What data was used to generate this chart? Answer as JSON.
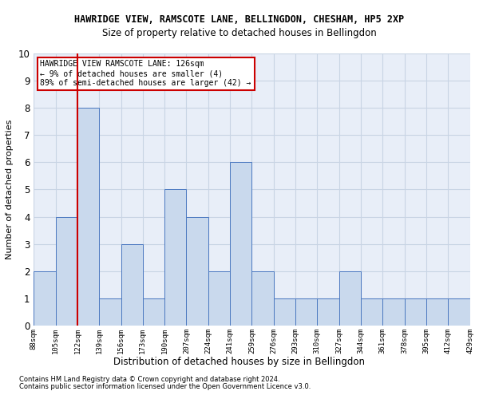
{
  "title": "HAWRIDGE VIEW, RAMSCOTE LANE, BELLINGDON, CHESHAM, HP5 2XP",
  "subtitle": "Size of property relative to detached houses in Bellingdon",
  "xlabel": "Distribution of detached houses by size in Bellingdon",
  "ylabel": "Number of detached properties",
  "categories": [
    "88sqm",
    "105sqm",
    "122sqm",
    "139sqm",
    "156sqm",
    "173sqm",
    "190sqm",
    "207sqm",
    "224sqm",
    "241sqm",
    "259sqm",
    "276sqm",
    "293sqm",
    "310sqm",
    "327sqm",
    "344sqm",
    "361sqm",
    "378sqm",
    "395sqm",
    "412sqm",
    "429sqm"
  ],
  "values": [
    2,
    4,
    8,
    1,
    3,
    1,
    5,
    4,
    2,
    6,
    2,
    1,
    1,
    1,
    2,
    1,
    1,
    1,
    1,
    1
  ],
  "bar_color": "#c9d9ed",
  "bar_edge_color": "#4a78c0",
  "vline_after_index": 1,
  "vline_color": "#cc0000",
  "ylim": [
    0,
    10
  ],
  "yticks": [
    0,
    1,
    2,
    3,
    4,
    5,
    6,
    7,
    8,
    9,
    10
  ],
  "annotation_lines": [
    "HAWRIDGE VIEW RAMSCOTE LANE: 126sqm",
    "← 9% of detached houses are smaller (4)",
    "89% of semi-detached houses are larger (42) →"
  ],
  "annotation_box_edgecolor": "#cc0000",
  "footnote1": "Contains HM Land Registry data © Crown copyright and database right 2024.",
  "footnote2": "Contains public sector information licensed under the Open Government Licence v3.0.",
  "grid_color": "#c8d4e4",
  "bg_color": "#e8eef8",
  "fig_width": 6.0,
  "fig_height": 5.0,
  "dpi": 100
}
